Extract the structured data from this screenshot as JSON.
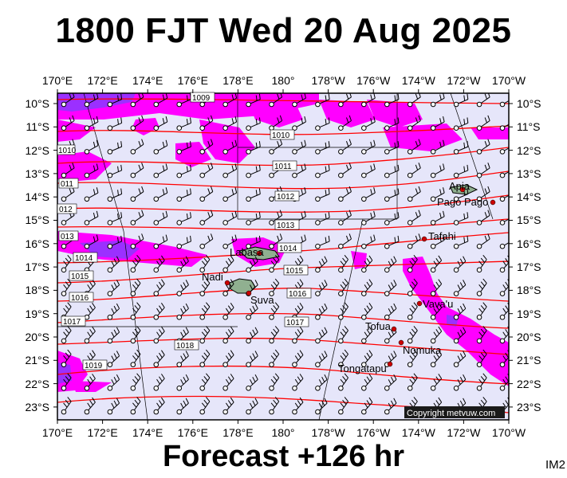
{
  "title": "1800 FJT Wed 20 Aug 2025",
  "footer": "Forecast +126 hr",
  "image_code": "IM2",
  "copyright": "Copyright metvuw.com",
  "colors": {
    "ocean": "#e6e6fa",
    "rain_light": "#ff00ff",
    "rain_heavy": "#9b30ff",
    "isobar": "#ff0000",
    "land": "#90b090",
    "town": "#cc0000"
  },
  "lon_labels": [
    "170°E",
    "172°E",
    "174°E",
    "176°E",
    "178°E",
    "180°",
    "178°W",
    "176°W",
    "174°W",
    "172°W",
    "170°W"
  ],
  "lat_labels": [
    "10°S",
    "11°S",
    "12°S",
    "13°S",
    "14°S",
    "15°S",
    "16°S",
    "17°S",
    "18°S",
    "19°S",
    "20°S",
    "21°S",
    "22°S",
    "23°S"
  ],
  "isobar_labels": [
    "1009",
    "1010",
    "1010",
    "1011",
    "011",
    "1012",
    "012",
    "1013",
    "013",
    "1014",
    "1014",
    "1015",
    "1015",
    "1016",
    "1016",
    "1017",
    "1017",
    "1018",
    "1019"
  ],
  "places": [
    "Apia",
    "Pago Pago",
    "Tafahi",
    "Labasa",
    "Nadi",
    "Suva",
    "Vava'u",
    "Tofua",
    "Nomuka",
    "Tongatapu"
  ]
}
